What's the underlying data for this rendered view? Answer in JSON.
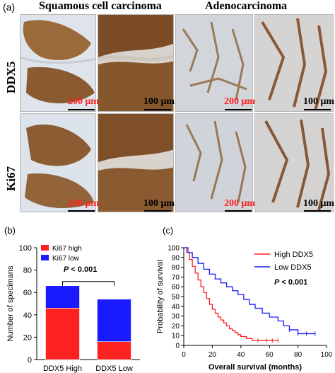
{
  "panel_a": {
    "label": "(a)",
    "columns": [
      "Squamous cell carcinoma",
      "Adenocarcinoma"
    ],
    "rows": [
      "DDX5",
      "Ki67"
    ],
    "scale_bars": [
      "200 μm",
      "100 μm",
      "200 μm",
      "100 μm",
      "200 μm",
      "100 μm",
      "200 μm",
      "100 μm"
    ]
  },
  "panel_b": {
    "label": "(b)",
    "pvalue_p": "P",
    "pvalue_rest": " < 0.001"
  },
  "panel_c": {
    "label": "(c)",
    "pvalue_p": "P",
    "pvalue_rest": " < 0.001"
  },
  "colors": {
    "red": "#ff2020",
    "blue": "#1a1aff",
    "stain": "#8a5a2e"
  },
  "chart_data": [
    {
      "type": "bar",
      "stacked": true,
      "categories": [
        "DDX5 High",
        "DDX5 Low"
      ],
      "series": [
        {
          "name": "Ki67 high",
          "values": [
            46,
            16
          ],
          "color": "#ff2020"
        },
        {
          "name": "Ki67 low",
          "values": [
            20,
            38
          ],
          "color": "#1a1aff"
        }
      ],
      "ylabel": "Number of specimans",
      "ylim": [
        0,
        100
      ],
      "yticks": [
        0,
        20,
        40,
        60,
        80,
        100
      ],
      "legend": "top-left",
      "annotation": "P < 0.001"
    },
    {
      "type": "line",
      "step": true,
      "xlabel": "Overall survival (months)",
      "ylabel": "Probability of survival",
      "xlim": [
        0,
        100
      ],
      "ylim": [
        0,
        100
      ],
      "xticks": [
        0,
        20,
        40,
        60,
        80,
        100
      ],
      "yticks": [
        0,
        10,
        20,
        30,
        40,
        50,
        60,
        70,
        80,
        90,
        100
      ],
      "legend": "top-right",
      "annotation": "P < 0.001",
      "series": [
        {
          "name": "High DDX5",
          "color": "#ff2020",
          "x": [
            0,
            2,
            4,
            6,
            8,
            10,
            12,
            14,
            16,
            18,
            20,
            22,
            24,
            26,
            28,
            30,
            32,
            34,
            36,
            38,
            40,
            44,
            48,
            52,
            58,
            62,
            66
          ],
          "y": [
            100,
            95,
            88,
            81,
            74,
            67,
            60,
            54,
            48,
            42,
            37,
            33,
            29,
            26,
            23,
            20,
            17,
            15,
            13,
            11,
            9,
            7,
            5,
            5,
            5,
            5,
            5
          ]
        },
        {
          "name": "Low DDX5",
          "color": "#1a1aff",
          "x": [
            0,
            3,
            6,
            10,
            14,
            18,
            22,
            26,
            30,
            34,
            38,
            42,
            46,
            50,
            55,
            60,
            66,
            70,
            74,
            80,
            86,
            92
          ],
          "y": [
            100,
            95,
            90,
            84,
            78,
            73,
            68,
            64,
            60,
            56,
            52,
            47,
            42,
            38,
            33,
            29,
            25,
            20,
            16,
            12,
            12,
            12
          ]
        }
      ]
    }
  ]
}
